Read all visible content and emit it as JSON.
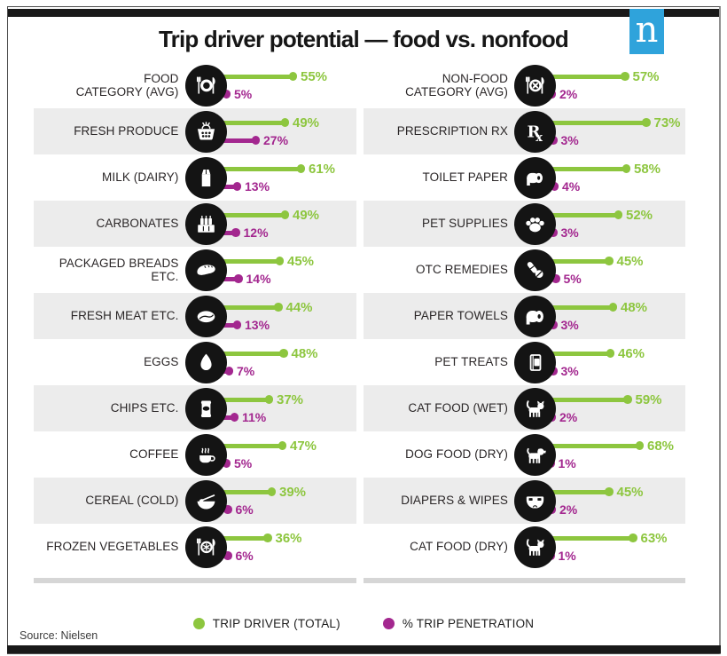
{
  "header": {
    "title": "Trip driver potential — food vs. nonfood",
    "logo_letter": "n"
  },
  "colors": {
    "trip_driver": "#8dc63f",
    "trip_penetration": "#a3278f",
    "row_alt_bg": "#ececec",
    "accent_bar": "#191919",
    "logo_blue": "#2fa3db"
  },
  "legend": {
    "items": [
      {
        "label": "TRIP DRIVER (TOTAL)",
        "color_key": "trip_driver"
      },
      {
        "label": "% TRIP PENETRATION",
        "color_key": "trip_penetration"
      }
    ]
  },
  "footer": {
    "source": "Source: Nielsen"
  },
  "chart_data": {
    "type": "bar",
    "orientation": "horizontal",
    "unit": "%",
    "series": [
      "TRIP DRIVER (TOTAL)",
      "% TRIP PENETRATION"
    ],
    "value_range": [
      0,
      100
    ],
    "columns": [
      {
        "name": "food",
        "rows": [
          {
            "label": "FOOD\nCATEGORY (AVG)",
            "icon": "plate-utensils-icon",
            "trip_driver": 55,
            "trip_penetration": 5
          },
          {
            "label": "FRESH PRODUCE",
            "icon": "basket-icon",
            "trip_driver": 49,
            "trip_penetration": 27
          },
          {
            "label": "MILK (DAIRY)",
            "icon": "milk-carton-icon",
            "trip_driver": 61,
            "trip_penetration": 13
          },
          {
            "label": "CARBONATES",
            "icon": "bottle-crate-icon",
            "trip_driver": 49,
            "trip_penetration": 12
          },
          {
            "label": "PACKAGED BREADS ETC.",
            "icon": "bread-icon",
            "trip_driver": 45,
            "trip_penetration": 14
          },
          {
            "label": "FRESH MEAT ETC.",
            "icon": "meat-icon",
            "trip_driver": 44,
            "trip_penetration": 13
          },
          {
            "label": "EGGS",
            "icon": "egg-icon",
            "trip_driver": 48,
            "trip_penetration": 7
          },
          {
            "label": "CHIPS ETC.",
            "icon": "chips-bag-icon",
            "trip_driver": 37,
            "trip_penetration": 11
          },
          {
            "label": "COFFEE",
            "icon": "coffee-cup-icon",
            "trip_driver": 47,
            "trip_penetration": 5
          },
          {
            "label": "CEREAL (COLD)",
            "icon": "cereal-bowl-icon",
            "trip_driver": 39,
            "trip_penetration": 6
          },
          {
            "label": "FROZEN VEGETABLES",
            "icon": "frozen-plate-icon",
            "trip_driver": 36,
            "trip_penetration": 6
          }
        ]
      },
      {
        "name": "nonfood",
        "rows": [
          {
            "label": "NON-FOOD\nCATEGORY (AVG)",
            "icon": "crossed-plate-icon",
            "trip_driver": 57,
            "trip_penetration": 2
          },
          {
            "label": "PRESCRIPTION RX",
            "icon": "rx-icon",
            "trip_driver": 73,
            "trip_penetration": 3
          },
          {
            "label": "TOILET PAPER",
            "icon": "toilet-roll-icon",
            "trip_driver": 58,
            "trip_penetration": 4
          },
          {
            "label": "PET SUPPLIES",
            "icon": "paw-icon",
            "trip_driver": 52,
            "trip_penetration": 3
          },
          {
            "label": "OTC REMEDIES",
            "icon": "pills-icon",
            "trip_driver": 45,
            "trip_penetration": 5
          },
          {
            "label": "PAPER TOWELS",
            "icon": "towel-roll-icon",
            "trip_driver": 48,
            "trip_penetration": 3
          },
          {
            "label": "PET TREATS",
            "icon": "treat-box-icon",
            "trip_driver": 46,
            "trip_penetration": 3
          },
          {
            "label": "CAT FOOD (WET)",
            "icon": "cat-icon",
            "trip_driver": 59,
            "trip_penetration": 2
          },
          {
            "label": "DOG FOOD (DRY)",
            "icon": "dog-icon",
            "trip_driver": 68,
            "trip_penetration": 1
          },
          {
            "label": "DIAPERS & WIPES",
            "icon": "diaper-icon",
            "trip_driver": 45,
            "trip_penetration": 2
          },
          {
            "label": "CAT FOOD (DRY)",
            "icon": "cat-icon",
            "trip_driver": 63,
            "trip_penetration": 1
          }
        ]
      }
    ]
  }
}
